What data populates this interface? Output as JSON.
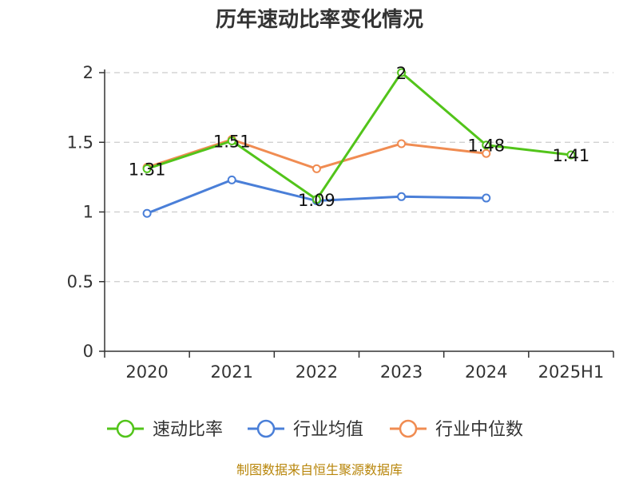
{
  "chart_data": {
    "type": "line",
    "title": "历年速动比率变化情况",
    "categories": [
      "2020",
      "2021",
      "2022",
      "2023",
      "2024",
      "2025H1"
    ],
    "ylim": [
      0,
      2
    ],
    "yticks": [
      "0",
      "0.5",
      "1",
      "1.5",
      "2"
    ],
    "grid": "horizontal dashed",
    "legend_position": "bottom",
    "series": [
      {
        "name": "速动比率",
        "color": "#52c41a",
        "values": [
          1.31,
          1.51,
          1.09,
          2,
          1.48,
          1.41
        ],
        "labels": [
          "1.31",
          "1.51",
          "1.09",
          "2",
          "1.48",
          "1.41"
        ]
      },
      {
        "name": "行业均值",
        "color": "#4a7fd8",
        "values": [
          0.99,
          1.23,
          1.08,
          1.11,
          1.1,
          null
        ]
      },
      {
        "name": "行业中位数",
        "color": "#f08c52",
        "values": [
          1.32,
          1.52,
          1.31,
          1.49,
          1.42,
          null
        ]
      }
    ]
  },
  "source": "制图数据来自恒生聚源数据库"
}
